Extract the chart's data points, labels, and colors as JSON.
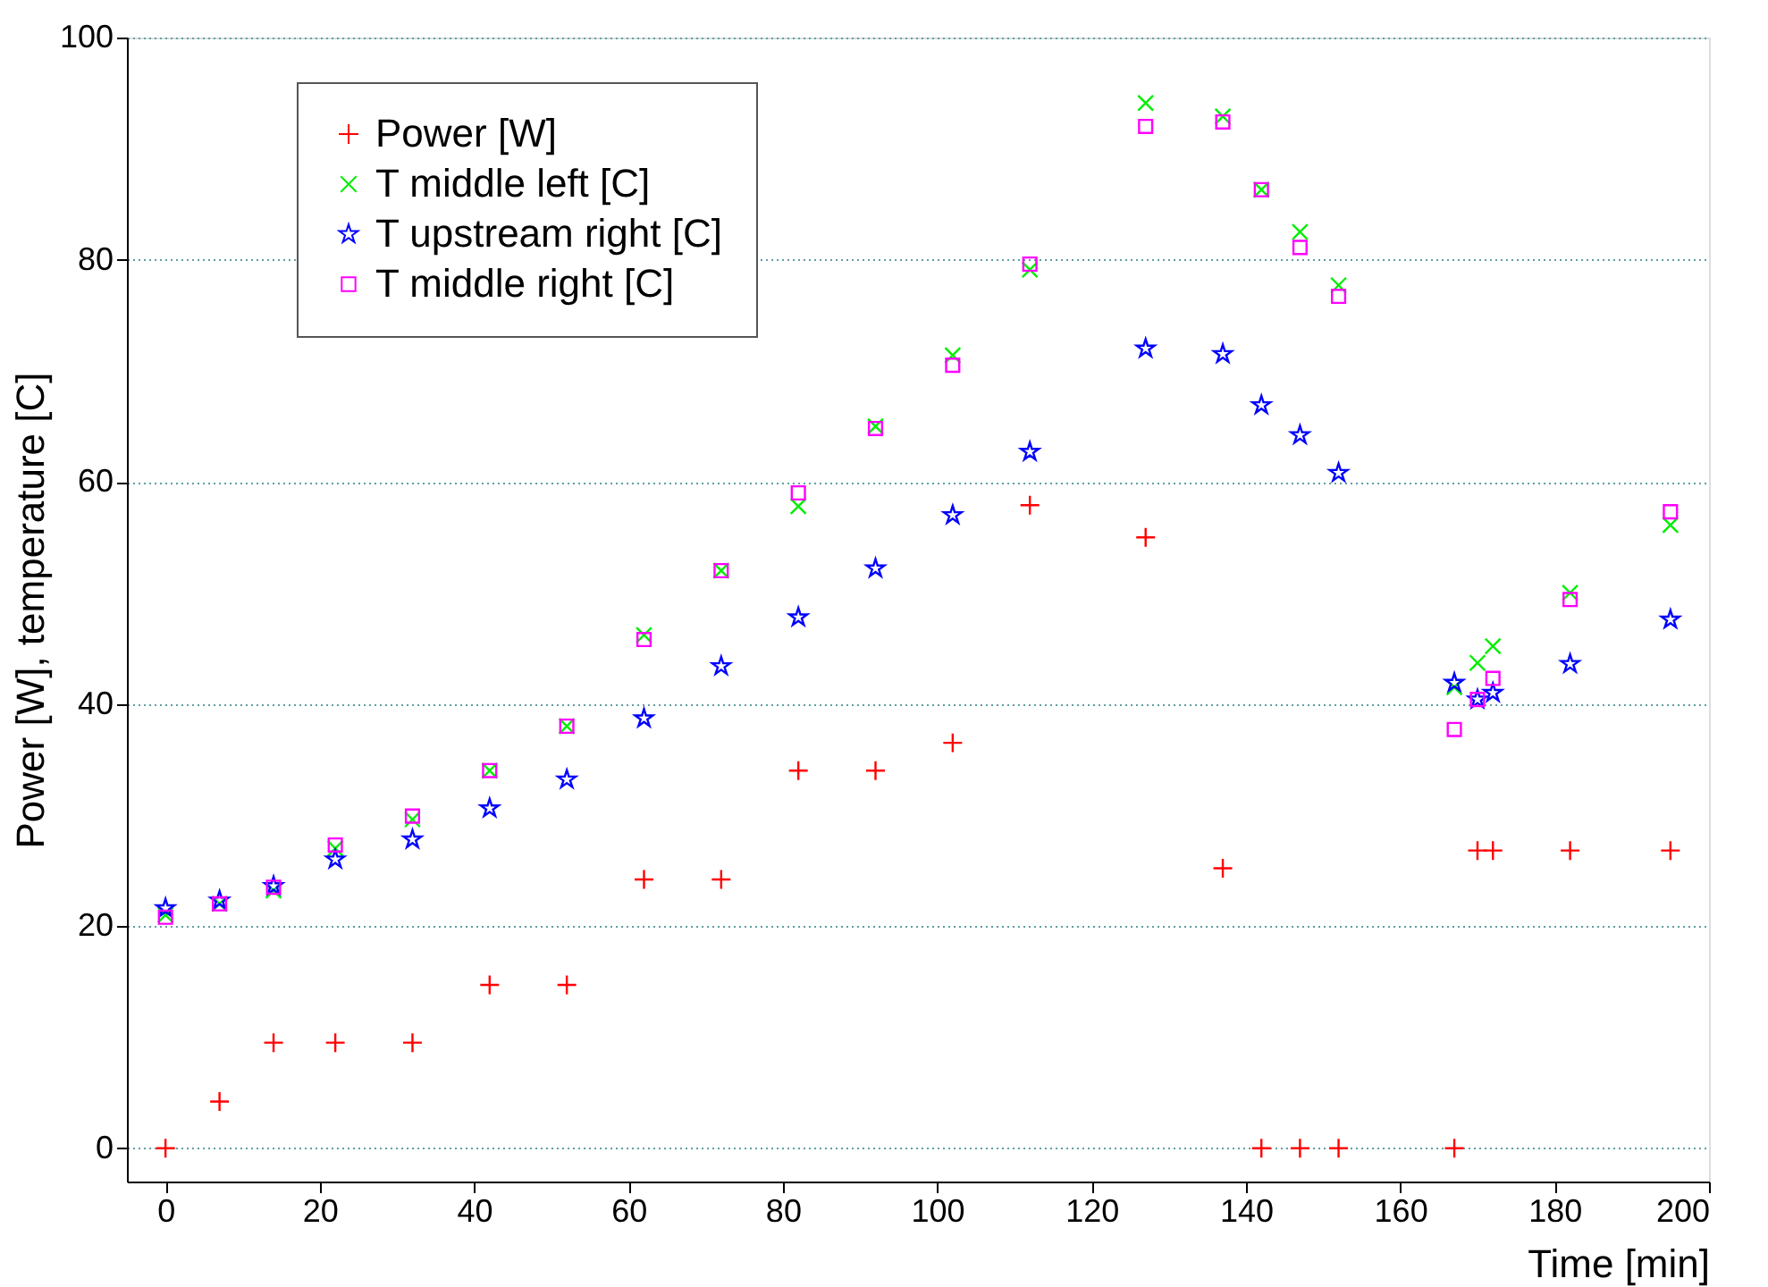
{
  "chart_data": {
    "type": "scatter",
    "xlabel": "Time [min]",
    "ylabel": "Power [W], temperature [C]",
    "xlim": [
      -5,
      200
    ],
    "xticks": [
      0,
      20,
      40,
      60,
      80,
      100,
      120,
      140,
      160,
      180,
      200
    ],
    "ylim": [
      -3,
      100
    ],
    "yticks": [
      0,
      20,
      40,
      60,
      80,
      100
    ],
    "grid": "y",
    "legend": "top left",
    "series": [
      {
        "name": "Power [W]",
        "color": "#ff0000",
        "marker": "cross",
        "x": [
          0,
          7,
          14,
          22,
          32,
          42,
          52,
          62,
          72,
          82,
          92,
          102,
          112,
          127,
          137,
          142,
          147,
          152,
          167,
          170,
          172,
          182,
          195
        ],
        "values": [
          0,
          4.2,
          9.5,
          9.5,
          9.5,
          14.7,
          14.7,
          24.2,
          24.2,
          34,
          34,
          36.5,
          57.9,
          55,
          25.2,
          0,
          0,
          0,
          0,
          26.8,
          26.8,
          26.8,
          26.8
        ]
      },
      {
        "name": "T middle left [C]",
        "color": "#00ee00",
        "marker": "x",
        "x": [
          0,
          7,
          14,
          22,
          32,
          42,
          52,
          62,
          72,
          82,
          92,
          102,
          112,
          127,
          137,
          142,
          147,
          152,
          167,
          170,
          172,
          182,
          195
        ],
        "values": [
          21,
          22,
          23.2,
          27,
          29.6,
          34,
          38,
          46.2,
          52,
          57.8,
          65,
          71.4,
          79.1,
          94.1,
          92.9,
          86.3,
          82.5,
          77.7,
          41.5,
          43.7,
          45.2,
          50,
          56.1
        ]
      },
      {
        "name": "T upstream right [C]",
        "color": "#0000ff",
        "marker": "star",
        "x": [
          0,
          7,
          14,
          22,
          32,
          42,
          52,
          62,
          72,
          82,
          92,
          102,
          112,
          127,
          137,
          142,
          147,
          152,
          167,
          170,
          172,
          182,
          195
        ],
        "values": [
          21.6,
          22.3,
          23.6,
          26,
          27.8,
          30.6,
          33.2,
          38.7,
          43.4,
          47.8,
          52.2,
          57,
          62.7,
          72,
          71.5,
          66.9,
          64.2,
          60.8,
          41.9,
          40.4,
          41,
          43.6,
          47.6
        ]
      },
      {
        "name": "T middle right [C]",
        "color": "#ff00ff",
        "marker": "square",
        "x": [
          0,
          7,
          14,
          22,
          32,
          42,
          52,
          62,
          72,
          82,
          92,
          102,
          112,
          127,
          137,
          142,
          147,
          152,
          167,
          170,
          172,
          182,
          195
        ],
        "values": [
          20.8,
          22,
          23.5,
          27.3,
          29.9,
          34,
          38,
          45.8,
          52,
          59,
          64.8,
          70.5,
          79.6,
          92,
          92.4,
          86.3,
          81.1,
          76.7,
          37.7,
          40.4,
          42.3,
          49.4,
          57.3
        ]
      }
    ]
  }
}
